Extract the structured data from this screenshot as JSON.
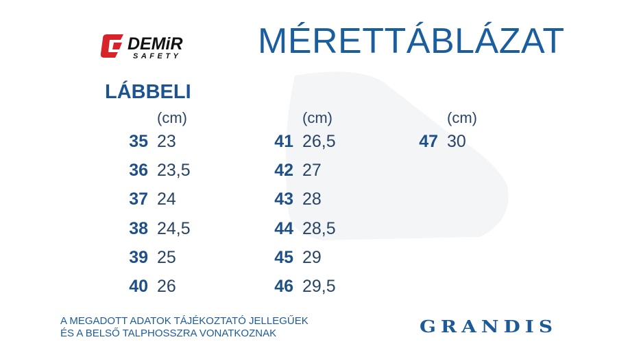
{
  "logo": {
    "brand": "DEMiR",
    "sub": "SAFETY"
  },
  "title": "MÉRETTÁBLÁZAT",
  "section": "LÁBBELI",
  "columns": [
    {
      "header": "(cm)",
      "rows": [
        [
          "35",
          "23"
        ],
        [
          "36",
          "23,5"
        ],
        [
          "37",
          "24"
        ],
        [
          "38",
          "24,5"
        ],
        [
          "39",
          "25"
        ],
        [
          "40",
          "26"
        ]
      ]
    },
    {
      "header": "(cm)",
      "rows": [
        [
          "41",
          "26,5"
        ],
        [
          "42",
          "27"
        ],
        [
          "43",
          "28"
        ],
        [
          "44",
          "28,5"
        ],
        [
          "45",
          "29"
        ],
        [
          "46",
          "29,5"
        ]
      ]
    },
    {
      "header": "(cm)",
      "rows": [
        [
          "47",
          "30"
        ]
      ]
    }
  ],
  "footer": {
    "lines": [
      "A MEGADOTT ADATOK TÁJÉKOZTATÓ JELLEGŰEK",
      "ÉS A BELSŐ TALPHOSSZRA VONATKOZNAK"
    ],
    "brand": "GRANDIS"
  }
}
